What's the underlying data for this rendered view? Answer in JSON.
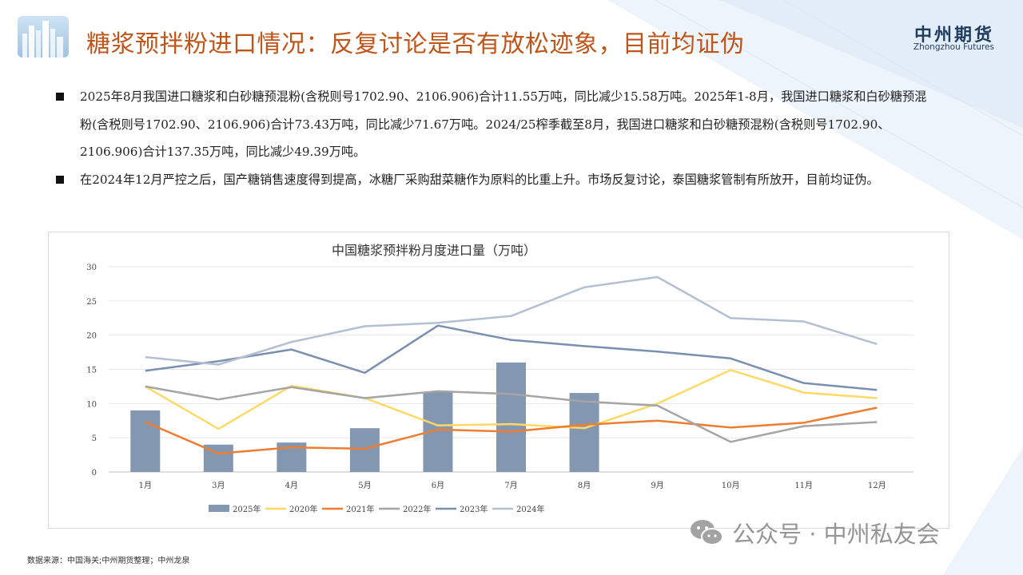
{
  "header": {
    "title": "糖浆预拌粉进口情况：反复讨论是否有放松迹象，目前均证伪",
    "brand_cn": "中州期货",
    "brand_en": "Zhongzhou Futures"
  },
  "bullets": [
    {
      "text": "2025年8月我国进口糖浆和白砂糖预混粉(含税则号1702.90、2106.906)合计11.55万吨，同比减少15.58万吨。2025年1-8月，我国进口糖浆和白砂糖预混粉(含税则号1702.90、2106.906)合计73.43万吨，同比减少71.67万吨。2024/25榨季截至8月，我国进口糖浆和白砂糖预混粉(含税则号1702.90、2106.906)合计137.35万吨，同比减少49.39万吨。"
    },
    {
      "text": "在2024年12月严控之后，国产糖销售速度得到提高，冰糖厂采购甜菜糖作为原料的比重上升。市场反复讨论，泰国糖浆管制有所放开，目前均证伪。"
    }
  ],
  "chart_data": {
    "type": "bar+line",
    "title": "中国糖浆预拌粉月度进口量（万吨）",
    "categories": [
      "1月",
      "3月",
      "4月",
      "5月",
      "6月",
      "7月",
      "8月",
      "9月",
      "10月",
      "11月",
      "12月"
    ],
    "ylim": [
      0,
      30
    ],
    "yticks": [
      0,
      5,
      10,
      15,
      20,
      25,
      30
    ],
    "bar_series": {
      "name": "2025年",
      "color": "#8497b0",
      "values": [
        9.0,
        4.0,
        4.3,
        6.4,
        11.7,
        16.0,
        11.55,
        null,
        null,
        null,
        null
      ]
    },
    "line_series": [
      {
        "name": "2020年",
        "color": "#ffd966",
        "values": [
          12.5,
          6.3,
          12.6,
          10.8,
          6.8,
          7.0,
          6.4,
          10.0,
          14.9,
          11.6,
          10.8
        ]
      },
      {
        "name": "2021年",
        "color": "#ed7d31",
        "values": [
          7.3,
          2.7,
          3.6,
          3.4,
          6.2,
          5.9,
          6.9,
          7.5,
          6.5,
          7.2,
          9.4
        ]
      },
      {
        "name": "2022年",
        "color": "#a5a5a5",
        "values": [
          12.5,
          10.6,
          12.4,
          10.8,
          11.8,
          11.4,
          10.3,
          9.7,
          4.4,
          6.7,
          7.3
        ]
      },
      {
        "name": "2023年",
        "color": "#7b8fae",
        "values": [
          14.8,
          16.2,
          17.9,
          14.5,
          21.4,
          19.3,
          18.4,
          17.6,
          16.6,
          13.0,
          12.0
        ]
      },
      {
        "name": "2024年",
        "color": "#b4bfd3",
        "values": [
          16.8,
          15.7,
          19.0,
          21.3,
          21.8,
          22.8,
          27.0,
          28.5,
          22.5,
          22.0,
          18.7
        ]
      }
    ],
    "legend_position": "bottom"
  },
  "footer": {
    "source": "数据来源：中国海关;中州期货整理；中州龙泉",
    "watermark": "公众号 · 中州私友会"
  }
}
